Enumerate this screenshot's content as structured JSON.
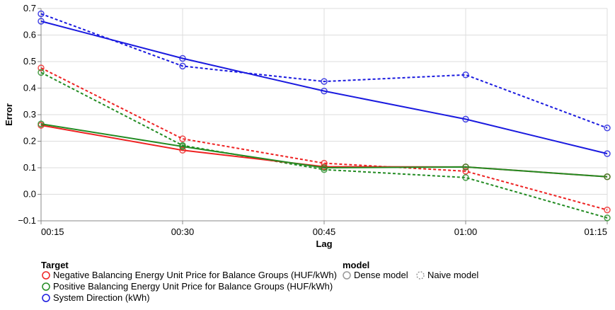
{
  "chart_data": {
    "type": "line",
    "xlabel": "Lag",
    "ylabel": "Error",
    "categories": [
      "00:15",
      "00:30",
      "00:45",
      "01:00",
      "01:15"
    ],
    "ylim": [
      -0.1,
      0.7
    ],
    "yticks": [
      "−0.1",
      "0.0",
      "0.1",
      "0.2",
      "0.3",
      "0.4",
      "0.5",
      "0.6",
      "0.7"
    ],
    "grid": true,
    "legend_placement": "bottom-left",
    "color_legend": {
      "title": "Target",
      "entries": [
        {
          "label": "Negative Balancing Energy Unit Price for Balance Groups (HUF/kWh)",
          "color": "#ee2222"
        },
        {
          "label": "Positive Balancing Energy Unit Price for Balance Groups (HUF/kWh)",
          "color": "#228b22"
        },
        {
          "label": "System Direction (kWh)",
          "color": "#1a1adf"
        }
      ]
    },
    "model_legend": {
      "title": "model",
      "entries": [
        {
          "label": "Dense model",
          "dash": "solid"
        },
        {
          "label": "Naive model",
          "dash": "dashed"
        }
      ]
    },
    "series": [
      {
        "target": 0,
        "model": "Dense model",
        "values": [
          0.26,
          0.166,
          0.104,
          0.103,
          0.066
        ]
      },
      {
        "target": 0,
        "model": "Naive model",
        "values": [
          0.476,
          0.209,
          0.117,
          0.087,
          -0.059
        ]
      },
      {
        "target": 1,
        "model": "Dense model",
        "values": [
          0.265,
          0.18,
          0.1,
          0.103,
          0.066
        ]
      },
      {
        "target": 1,
        "model": "Naive model",
        "values": [
          0.459,
          0.184,
          0.093,
          0.063,
          -0.089
        ]
      },
      {
        "target": 2,
        "model": "Dense model",
        "values": [
          0.652,
          0.512,
          0.389,
          0.283,
          0.153
        ]
      },
      {
        "target": 2,
        "model": "Naive model",
        "values": [
          0.68,
          0.483,
          0.425,
          0.45,
          0.25
        ]
      }
    ]
  }
}
